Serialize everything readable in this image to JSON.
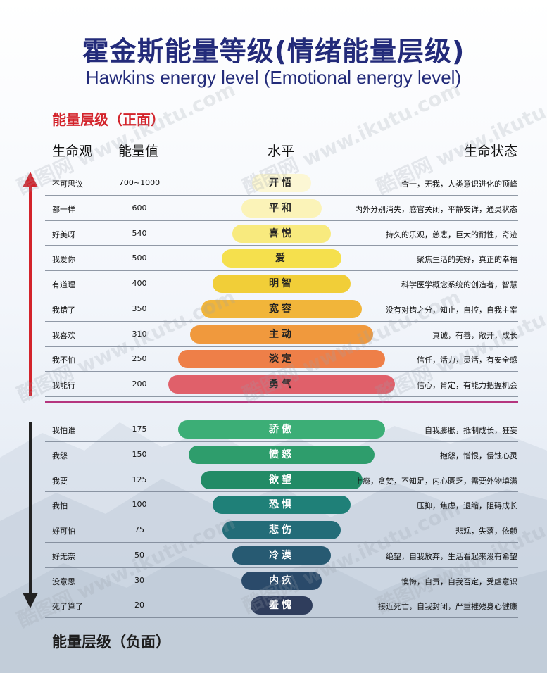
{
  "title_cn": "霍金斯能量等级(情绪能量层级)",
  "title_en": "Hawkins energy level (Emotional energy level)",
  "section_positive": "能量层级（正面）",
  "section_negative": "能量层级（负面）",
  "headers": {
    "view": "生命观",
    "value": "能量值",
    "level": "水平",
    "state": "生命状态"
  },
  "watermark": "酷图网 www.ikutu.com",
  "colors": {
    "title": "#232b7a",
    "positive_arrow": "#d3232b",
    "negative_arrow": "#222222",
    "divider": "#b5357e"
  },
  "chart_data": {
    "type": "table",
    "title": "霍金斯能量等级(情绪能量层级)",
    "subtitle": "Hawkins energy level (Emotional energy level)",
    "positive": [
      {
        "view": "不可思议",
        "value": "700~1000",
        "level": "开悟",
        "state": "合一，无我，人类意识进化的顶峰",
        "color": "#fcf7d4",
        "text_color": "#222222"
      },
      {
        "view": "都一样",
        "value": "600",
        "level": "平和",
        "state": "内外分别消失，感官关闭，平静安详，通灵状态",
        "color": "#fbf3b8",
        "text_color": "#222222"
      },
      {
        "view": "好美呀",
        "value": "540",
        "level": "喜悦",
        "state": "持久的乐观，慈悲，巨大的耐性，奇迹",
        "color": "#f8ea7e",
        "text_color": "#222222"
      },
      {
        "view": "我爱你",
        "value": "500",
        "level": "爱",
        "state": "聚焦生活的美好，真正的幸福",
        "color": "#f5e04d",
        "text_color": "#222222"
      },
      {
        "view": "有道理",
        "value": "400",
        "level": "明智",
        "state": "科学医学概念系统的创造者，智慧",
        "color": "#f1ce38",
        "text_color": "#222222"
      },
      {
        "view": "我错了",
        "value": "350",
        "level": "宽容",
        "state": "没有对错之分，知止，自控，自我主宰",
        "color": "#f1b53a",
        "text_color": "#222222"
      },
      {
        "view": "我喜欢",
        "value": "310",
        "level": "主动",
        "state": "真诚，有善，敞开，成长",
        "color": "#f0993d",
        "text_color": "#222222"
      },
      {
        "view": "我不怕",
        "value": "250",
        "level": "淡定",
        "state": "信任，活力，灵活，有安全感",
        "color": "#ee7f48",
        "text_color": "#222222"
      },
      {
        "view": "我能行",
        "value": "200",
        "level": "勇气",
        "state": "信心，肯定，有能力把握机会",
        "color": "#e0606a",
        "text_color": "#222222"
      }
    ],
    "negative": [
      {
        "view": "我怕谁",
        "value": "175",
        "level": "骄傲",
        "state": "自我膨胀，抵制成长，狂妄",
        "color": "#3cae76",
        "text_color": "#ffffff"
      },
      {
        "view": "我怨",
        "value": "150",
        "level": "愤怒",
        "state": "抱怨，憎恨，侵蚀心灵",
        "color": "#2e9d6c",
        "text_color": "#ffffff"
      },
      {
        "view": "我要",
        "value": "125",
        "level": "欲望",
        "state": "上瘾，贪婪，不知足，内心匮乏，需要外物填满",
        "color": "#228b66",
        "text_color": "#ffffff"
      },
      {
        "view": "我怕",
        "value": "100",
        "level": "恐惧",
        "state": "压抑，焦虑，退缩，阻碍成长",
        "color": "#1f8078",
        "text_color": "#ffffff"
      },
      {
        "view": "好可怕",
        "value": "75",
        "level": "悲伤",
        "state": "悲观，失落，依赖",
        "color": "#236c78",
        "text_color": "#ffffff"
      },
      {
        "view": "好无奈",
        "value": "50",
        "level": "冷漠",
        "state": "绝望，自我放弃，生活看起来没有希望",
        "color": "#275a72",
        "text_color": "#ffffff"
      },
      {
        "view": "没意思",
        "value": "30",
        "level": "内疚",
        "state": "懊悔，自责，自我否定，受虐意识",
        "color": "#2a4a6a",
        "text_color": "#ffffff"
      },
      {
        "view": "死了算了",
        "value": "20",
        "level": "羞愧",
        "state": "接近死亡，自我封闭，严重摧残身心健康",
        "color": "#2f3d5c",
        "text_color": "#ffffff"
      }
    ]
  }
}
